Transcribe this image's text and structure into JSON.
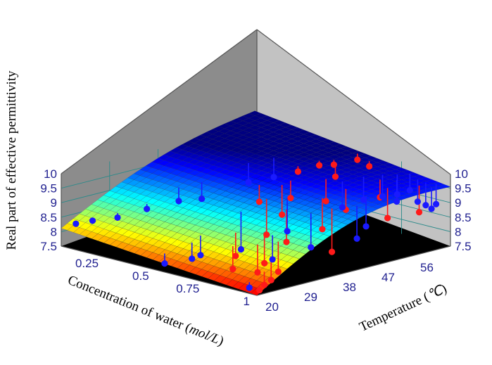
{
  "chart_data": {
    "type": "scatter",
    "subtype": "3d-response-surface-with-scatter",
    "zlabel": "Real part of effective permittivity",
    "xlabel_prefix": "Concentration of water (",
    "xlabel_unit": "mol/L",
    "xlabel_suffix": ")",
    "ylabel_prefix": "Temperature (",
    "ylabel_unit": "℃",
    "ylabel_suffix": ")",
    "x_ticks": [
      "0.25",
      "0.5",
      "0.75",
      "1"
    ],
    "y_ticks": [
      "20",
      "29",
      "38",
      "47",
      "56"
    ],
    "z_ticks": [
      "7.5",
      "8",
      "8.5",
      "9",
      "9.5",
      "10"
    ],
    "xlim": [
      0.03,
      1.0
    ],
    "ylim": [
      20,
      65
    ],
    "zlim": [
      7.5,
      10
    ],
    "surface_colormap": "jet",
    "colors": {
      "left_pane": "#8c8c8c",
      "right_pane": "#c2c2c2",
      "floor": "#000000",
      "pane_grid": "#2b8a8a",
      "red_points": "#ff1a1a",
      "blue_points": "#1a1aff",
      "tick_text": "#1f1f8f"
    },
    "series": [
      {
        "marker_color": "red",
        "points": [
          {
            "x": 0.5,
            "y": 44,
            "z": 8.95
          },
          {
            "x": 0.57,
            "y": 48,
            "z": 9.05
          },
          {
            "x": 0.5,
            "y": 53,
            "z": 9.65
          },
          {
            "x": 0.52,
            "y": 57,
            "z": 9.75
          },
          {
            "x": 0.55,
            "y": 59,
            "z": 9.75
          },
          {
            "x": 0.56,
            "y": 64,
            "z": 9.75
          },
          {
            "x": 0.64,
            "y": 63,
            "z": 9.7
          },
          {
            "x": 0.6,
            "y": 57,
            "z": 9.5
          },
          {
            "x": 0.8,
            "y": 58,
            "z": 9.1
          },
          {
            "x": 0.78,
            "y": 51,
            "z": 8.9
          },
          {
            "x": 0.66,
            "y": 52,
            "z": 8.95
          },
          {
            "x": 0.57,
            "y": 46,
            "z": 8.55
          },
          {
            "x": 0.6,
            "y": 41,
            "z": 8.1
          },
          {
            "x": 0.72,
            "y": 40,
            "z": 8.1
          },
          {
            "x": 0.77,
            "y": 46,
            "z": 8.4
          },
          {
            "x": 0.88,
            "y": 56,
            "z": 8.6
          },
          {
            "x": 0.93,
            "y": 61,
            "z": 8.7
          },
          {
            "x": 0.86,
            "y": 44,
            "z": 7.85
          },
          {
            "x": 0.76,
            "y": 33,
            "z": 7.7
          },
          {
            "x": 0.66,
            "y": 31,
            "z": 7.85
          },
          {
            "x": 0.71,
            "y": 28,
            "z": 7.6
          },
          {
            "x": 0.79,
            "y": 30,
            "z": 7.55
          },
          {
            "x": 0.85,
            "y": 32,
            "z": 7.6
          },
          {
            "x": 0.9,
            "y": 28,
            "z": 7.55
          },
          {
            "x": 0.93,
            "y": 25,
            "z": 7.55
          },
          {
            "x": 0.97,
            "y": 22,
            "z": 7.55
          }
        ]
      },
      {
        "marker_color": "blue",
        "points": [
          {
            "x": 0.06,
            "y": 22,
            "z": 8.25
          },
          {
            "x": 0.1,
            "y": 24,
            "z": 8.35
          },
          {
            "x": 0.16,
            "y": 27,
            "z": 8.45
          },
          {
            "x": 0.22,
            "y": 31,
            "z": 8.7
          },
          {
            "x": 0.25,
            "y": 37,
            "z": 8.8
          },
          {
            "x": 0.3,
            "y": 40,
            "z": 8.85
          },
          {
            "x": 0.34,
            "y": 49,
            "z": 9.15
          },
          {
            "x": 0.38,
            "y": 53,
            "z": 9.25
          },
          {
            "x": 0.72,
            "y": 53,
            "z": 8.8
          },
          {
            "x": 0.74,
            "y": 57,
            "z": 8.95
          },
          {
            "x": 0.77,
            "y": 60,
            "z": 9.0
          },
          {
            "x": 0.8,
            "y": 62,
            "z": 9.05
          },
          {
            "x": 0.82,
            "y": 64,
            "z": 9.15
          },
          {
            "x": 0.84,
            "y": 60,
            "z": 8.95
          },
          {
            "x": 0.88,
            "y": 63,
            "z": 8.9
          },
          {
            "x": 0.92,
            "y": 63,
            "z": 8.85
          },
          {
            "x": 0.95,
            "y": 64,
            "z": 8.9
          },
          {
            "x": 0.97,
            "y": 62,
            "z": 8.85
          },
          {
            "x": 0.88,
            "y": 51,
            "z": 8.5
          },
          {
            "x": 0.92,
            "y": 47,
            "z": 8.3
          },
          {
            "x": 0.82,
            "y": 41,
            "z": 8.05
          },
          {
            "x": 0.8,
            "y": 33,
            "z": 7.9
          },
          {
            "x": 0.66,
            "y": 43,
            "z": 8.25
          },
          {
            "x": 0.58,
            "y": 36,
            "z": 7.75
          },
          {
            "x": 0.55,
            "y": 28,
            "z": 7.8
          },
          {
            "x": 0.55,
            "y": 26,
            "z": 7.75
          },
          {
            "x": 0.5,
            "y": 22,
            "z": 7.65
          },
          {
            "x": 0.92,
            "y": 22,
            "z": 7.55
          }
        ]
      }
    ]
  }
}
